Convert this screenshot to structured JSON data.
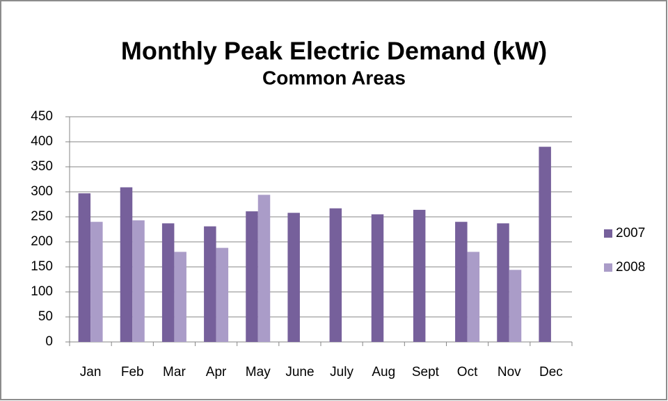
{
  "chart_data": {
    "type": "bar",
    "title": "Monthly Peak Electric Demand (kW)",
    "subtitle": "Common Areas",
    "categories": [
      "Jan",
      "Feb",
      "Mar",
      "Apr",
      "May",
      "June",
      "July",
      "Aug",
      "Sept",
      "Oct",
      "Nov",
      "Dec"
    ],
    "series": [
      {
        "name": "2007",
        "color": "#76609b",
        "values": [
          297,
          309,
          237,
          231,
          261,
          258,
          267,
          255,
          264,
          240,
          237,
          390
        ]
      },
      {
        "name": "2008",
        "color": "#aa9cc8",
        "values": [
          240,
          243,
          180,
          188,
          294,
          null,
          null,
          null,
          null,
          180,
          144,
          null
        ]
      }
    ],
    "ylim": [
      0,
      450
    ],
    "yticks": [
      0,
      50,
      100,
      150,
      200,
      250,
      300,
      350,
      400,
      450
    ],
    "grid": true,
    "legend": "right"
  }
}
